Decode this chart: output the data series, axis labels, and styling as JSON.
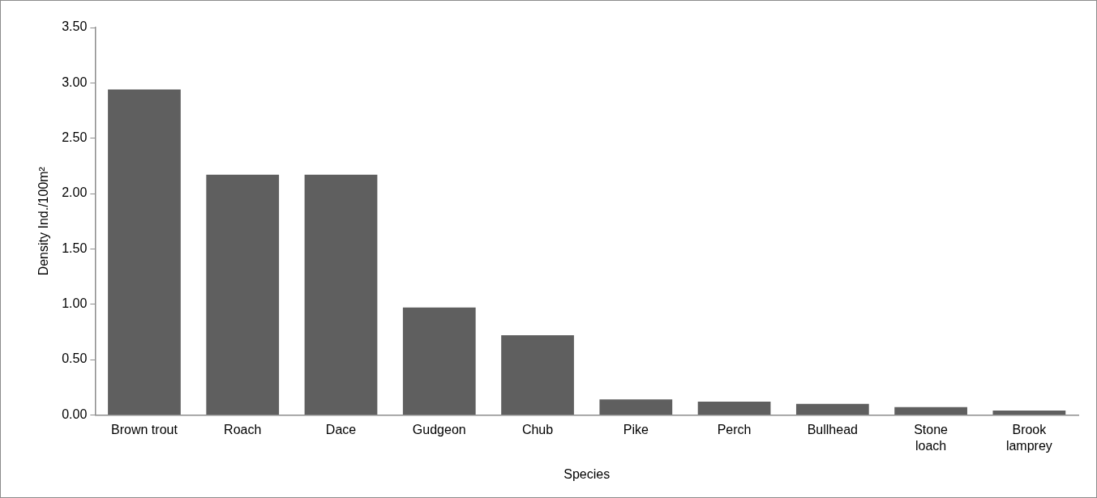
{
  "chart_data": {
    "type": "bar",
    "xlabel": "Species",
    "ylabel": "Density Ind./100m²",
    "categories": [
      "Brown trout",
      "Roach",
      "Dace",
      "Gudgeon",
      "Chub",
      "Pike",
      "Perch",
      "Bullhead",
      "Stone\nloach",
      "Brook\nlamprey"
    ],
    "values": [
      2.94,
      2.17,
      2.17,
      0.97,
      0.72,
      0.14,
      0.12,
      0.1,
      0.07,
      0.04
    ],
    "color": "#5f5f5f",
    "ylim": [
      0,
      3.5
    ],
    "yticks": [
      {
        "value": 0,
        "label": "0.00"
      },
      {
        "value": 0.5,
        "label": "0.50"
      },
      {
        "value": 1,
        "label": "1.00"
      },
      {
        "value": 1.5,
        "label": "1.50"
      },
      {
        "value": 2,
        "label": "2.00"
      },
      {
        "value": 2.5,
        "label": "2.50"
      },
      {
        "value": 3,
        "label": "3.00"
      },
      {
        "value": 3.5,
        "label": "3.50"
      }
    ],
    "grid": false,
    "legend": false
  }
}
